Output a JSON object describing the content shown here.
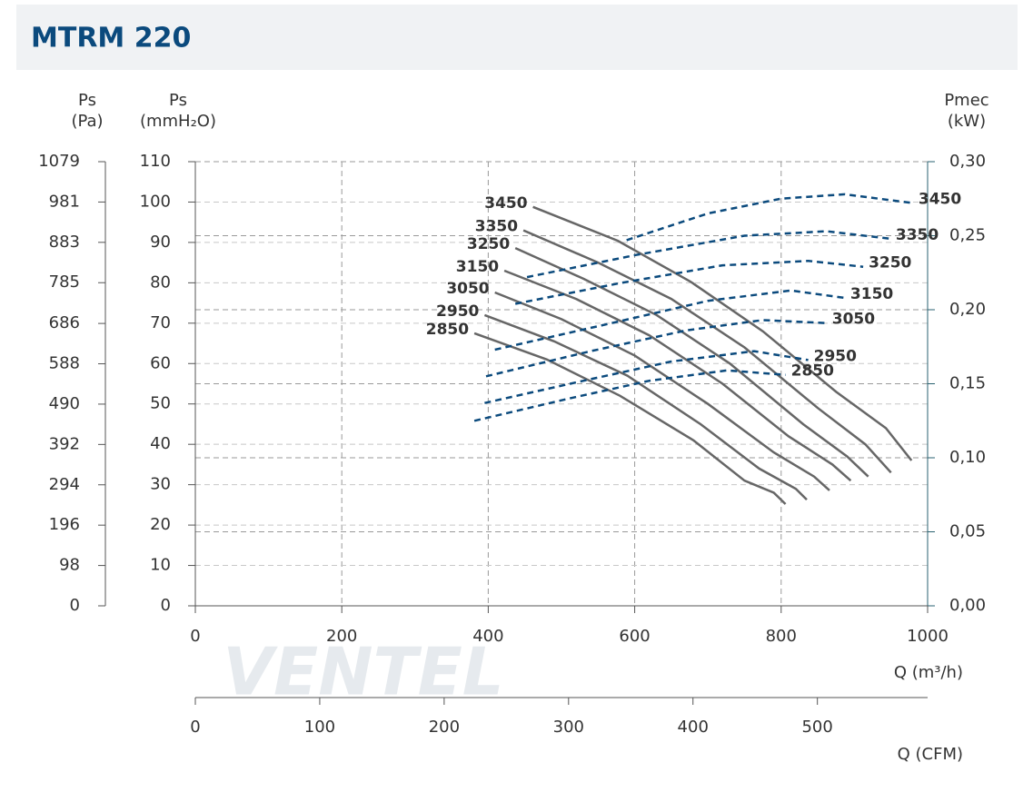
{
  "chart_data": {
    "type": "line",
    "title": "MTRM 220",
    "xlabel": "Q (m³/h)",
    "xlim": [
      0,
      1000
    ],
    "xticks": [
      0,
      200,
      400,
      600,
      800,
      1000
    ],
    "ylabel": [
      "Ps",
      "(mmH₂O)"
    ],
    "ylim": [
      0,
      110
    ],
    "yticks": [
      0,
      10,
      20,
      30,
      40,
      50,
      60,
      70,
      80,
      90,
      100,
      110
    ],
    "pa_axis": {
      "label": [
        "Ps",
        "(Pa)"
      ],
      "lim": [
        0,
        1079
      ],
      "ticks": [
        0,
        98,
        196,
        294,
        392,
        490,
        588,
        686,
        785,
        883,
        981,
        1079
      ]
    },
    "y2label": [
      "Pmec",
      "(kW)"
    ],
    "y2lim": [
      0,
      0.3
    ],
    "y2ticks": [
      {
        "value": 0,
        "label": "0,00"
      },
      {
        "value": 0.05,
        "label": "0,05"
      },
      {
        "value": 0.1,
        "label": "0,10"
      },
      {
        "value": 0.15,
        "label": "0,15"
      },
      {
        "value": 0.2,
        "label": "0,20"
      },
      {
        "value": 0.25,
        "label": "0,25"
      },
      {
        "value": 0.3,
        "label": "0,30"
      }
    ],
    "cfm_axis": {
      "label": "Q (CFM)",
      "lim": [
        0,
        588.6
      ],
      "ticks": [
        0,
        100,
        200,
        300,
        400,
        500
      ]
    },
    "grid": true,
    "logo": "VENTEL",
    "series": [
      {
        "name": "3450",
        "color": "#666666",
        "x": [
          461,
          577,
          676,
          775,
          875,
          943,
          978
        ],
        "values": [
          98.8,
          90.4,
          80.3,
          68,
          53,
          44,
          36
        ]
      },
      {
        "name": "3350",
        "color": "#666666",
        "x": [
          448,
          550,
          650,
          750,
          850,
          915,
          950
        ],
        "values": [
          93,
          85,
          76,
          64,
          49,
          40,
          33
        ]
      },
      {
        "name": "3250",
        "color": "#666666",
        "x": [
          437,
          530,
          630,
          730,
          830,
          890,
          919
        ],
        "values": [
          88.6,
          81,
          72,
          60,
          45,
          37,
          32
        ]
      },
      {
        "name": "3150",
        "color": "#666666",
        "x": [
          422,
          520,
          620,
          720,
          810,
          870,
          895
        ],
        "values": [
          83,
          76,
          67,
          55,
          42,
          35,
          31
        ]
      },
      {
        "name": "3050",
        "color": "#666666",
        "x": [
          409,
          500,
          600,
          700,
          790,
          845,
          866
        ],
        "values": [
          77.6,
          71,
          62,
          50,
          38,
          32,
          28.6
        ]
      },
      {
        "name": "2950",
        "color": "#666666",
        "x": [
          395,
          490,
          590,
          690,
          770,
          820,
          835
        ],
        "values": [
          72,
          65.5,
          57,
          45,
          34,
          29,
          26.3
        ]
      },
      {
        "name": "2850",
        "color": "#666666",
        "x": [
          381,
          480,
          580,
          680,
          750,
          790,
          806
        ],
        "values": [
          67.5,
          61,
          52,
          41,
          31,
          28,
          25.2
        ]
      },
      {
        "name": "3450",
        "color": "#0b4a7d",
        "axis": "y2",
        "dash": true,
        "x": [
          589,
          700,
          800,
          887,
          980
        ],
        "values": [
          0.247,
          0.265,
          0.275,
          0.278,
          0.272
        ]
      },
      {
        "name": "3350",
        "color": "#0b4a7d",
        "axis": "y2",
        "dash": true,
        "x": [
          453,
          602,
          750,
          862,
          949
        ],
        "values": [
          0.222,
          0.237,
          0.25,
          0.253,
          0.248
        ]
      },
      {
        "name": "3250",
        "color": "#0b4a7d",
        "axis": "y2",
        "dash": true,
        "x": [
          437,
          580,
          720,
          837,
          912
        ],
        "values": [
          0.204,
          0.218,
          0.23,
          0.233,
          0.229
        ]
      },
      {
        "name": "3150",
        "color": "#0b4a7d",
        "axis": "y2",
        "dash": true,
        "x": [
          409,
          560,
          700,
          813,
          887
        ],
        "values": [
          0.173,
          0.19,
          0.206,
          0.213,
          0.208
        ]
      },
      {
        "name": "3050",
        "color": "#0b4a7d",
        "axis": "y2",
        "dash": true,
        "x": [
          397,
          540,
          670,
          775,
          862
        ],
        "values": [
          0.155,
          0.172,
          0.186,
          0.193,
          0.191
        ]
      },
      {
        "name": "2950",
        "color": "#0b4a7d",
        "axis": "y2",
        "dash": true,
        "x": [
          395,
          530,
          650,
          763,
          837
        ],
        "values": [
          0.137,
          0.152,
          0.165,
          0.172,
          0.166
        ]
      },
      {
        "name": "2850",
        "color": "#0b4a7d",
        "axis": "y2",
        "dash": true,
        "x": [
          381,
          510,
          620,
          726,
          806
        ],
        "values": [
          0.125,
          0.14,
          0.152,
          0.159,
          0.156
        ]
      }
    ]
  }
}
